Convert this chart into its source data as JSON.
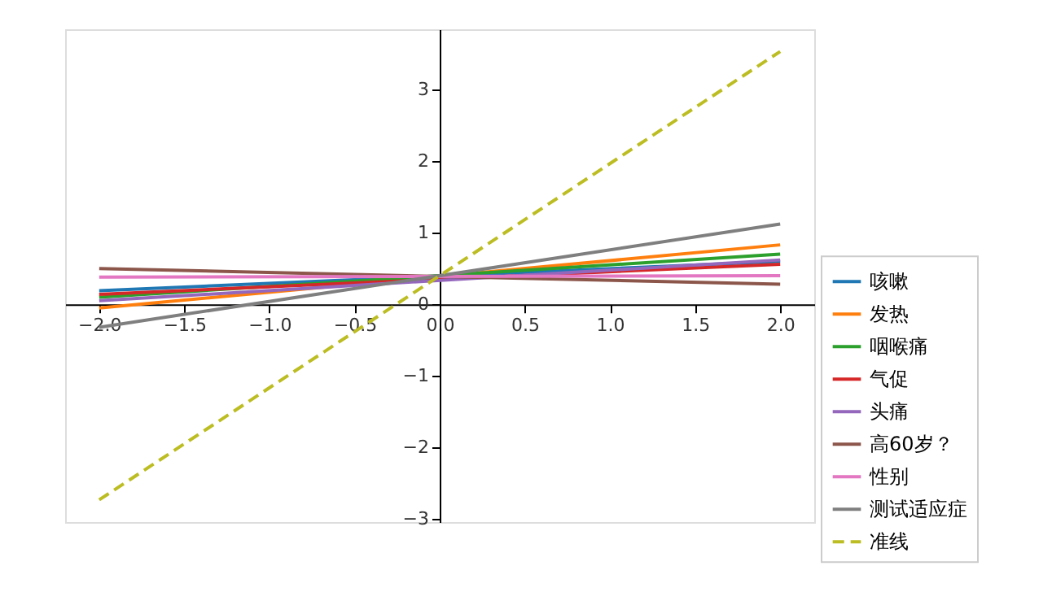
{
  "chart_data": {
    "type": "line",
    "legend": "bottom right",
    "grid": false,
    "marker": "none",
    "xlim": [
      -2.2,
      2.2
    ],
    "ylim": [
      -3.04,
      3.84
    ],
    "xticks": [
      {
        "value": -2,
        "label": "−2.0"
      },
      {
        "value": -1.5,
        "label": "−1.5"
      },
      {
        "value": -1,
        "label": "−1.0"
      },
      {
        "value": -0.5,
        "label": "−0.5"
      },
      {
        "value": 0,
        "label": "0.0"
      },
      {
        "value": 0.5,
        "label": "0.5"
      },
      {
        "value": 1,
        "label": "1.0"
      },
      {
        "value": 1.5,
        "label": "1.5"
      },
      {
        "value": 2,
        "label": "2.0"
      }
    ],
    "yticks": [
      {
        "value": -3,
        "label": "−3"
      },
      {
        "value": -2,
        "label": "−2"
      },
      {
        "value": -1,
        "label": "−1"
      },
      0,
      1,
      2,
      3
    ],
    "x": [
      -2,
      2
    ],
    "series": [
      {
        "name": "咳嗽",
        "color": "#1f77b4",
        "values": [
          0.19,
          0.6
        ]
      },
      {
        "name": "发热",
        "color": "#ff7f0e",
        "values": [
          -0.05,
          0.83
        ]
      },
      {
        "name": "咽喉痛",
        "color": "#2ca02c",
        "values": [
          0.1,
          0.7
        ]
      },
      {
        "name": "气促",
        "color": "#d62728",
        "values": [
          0.14,
          0.56
        ]
      },
      {
        "name": "头痛",
        "color": "#9467bd",
        "values": [
          0.05,
          0.62
        ]
      },
      {
        "name": "高60岁？",
        "color": "#8c564b",
        "values": [
          0.5,
          0.28
        ]
      },
      {
        "name": "性别",
        "color": "#e377c2",
        "values": [
          0.38,
          0.4
        ]
      },
      {
        "name": "测试适应症",
        "color": "#7f7f7f",
        "values": [
          -0.32,
          1.12
        ]
      },
      {
        "name": "准线",
        "color": "#bcbd22",
        "values": [
          -2.73,
          3.53
        ],
        "line_style": "dashed"
      }
    ]
  }
}
